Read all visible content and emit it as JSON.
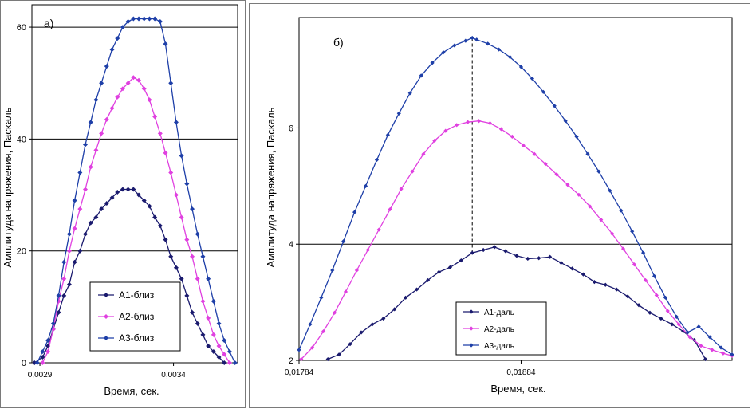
{
  "chart_data": [
    {
      "type": "line",
      "panel_label": "a)",
      "title": "",
      "xlabel": "Время, сек.",
      "ylabel": "Амплитуда напряжения, Паскаль",
      "xlim": [
        0.00287,
        0.00364
      ],
      "ylim": [
        0,
        64
      ],
      "xticks": [
        0.0029,
        0.0034
      ],
      "xtick_labels": [
        "0,0029",
        "0,0034"
      ],
      "yticks": [
        0,
        20,
        40,
        60
      ],
      "ytick_labels": [
        "0",
        "20",
        "40",
        "60"
      ],
      "grid": "horizontal",
      "legend_position": "lower-left",
      "series": [
        {
          "name": "А1-близ",
          "color": "#1a1a6e",
          "x": [
            0.00288,
            0.00291,
            0.00293,
            0.00295,
            0.00297,
            0.00299,
            0.00301,
            0.00303,
            0.00305,
            0.00307,
            0.00309,
            0.00311,
            0.00313,
            0.00315,
            0.00317,
            0.00319,
            0.00321,
            0.00323,
            0.00325,
            0.00327,
            0.00329,
            0.00331,
            0.00333,
            0.00335,
            0.00337,
            0.00339,
            0.00341,
            0.00343,
            0.00345,
            0.00347,
            0.00349,
            0.00351,
            0.00353,
            0.00355,
            0.00357,
            0.00359
          ],
          "y": [
            0,
            1,
            3,
            6,
            9,
            12,
            14,
            18,
            20,
            23,
            25,
            26,
            27.5,
            28.5,
            29.5,
            30.5,
            31,
            31,
            31,
            30,
            29,
            28,
            26,
            24.5,
            22,
            19,
            17,
            15,
            12,
            9,
            7,
            5,
            3,
            2,
            1,
            0
          ]
        },
        {
          "name": "А2-близ",
          "color": "#e040e0",
          "x": [
            0.00291,
            0.00293,
            0.00295,
            0.00297,
            0.00299,
            0.00301,
            0.00303,
            0.00305,
            0.00307,
            0.00309,
            0.00311,
            0.00313,
            0.00315,
            0.00317,
            0.00319,
            0.00321,
            0.00323,
            0.00325,
            0.00327,
            0.00329,
            0.00331,
            0.00333,
            0.00335,
            0.00337,
            0.00339,
            0.00341,
            0.00343,
            0.00345,
            0.00347,
            0.00349,
            0.00351,
            0.00353,
            0.00355,
            0.00357,
            0.00359,
            0.00361
          ],
          "y": [
            0,
            2,
            6,
            11,
            15,
            20,
            24,
            27.5,
            31,
            35,
            38,
            41,
            43.5,
            45.5,
            47.5,
            49,
            50,
            51,
            50.5,
            49,
            47,
            44,
            41,
            37.5,
            34,
            30,
            26,
            22,
            19,
            15,
            11,
            8,
            5,
            3,
            1.5,
            0
          ]
        },
        {
          "name": "А3-близ",
          "color": "#1e3fa8",
          "x": [
            0.00289,
            0.00291,
            0.00293,
            0.00295,
            0.00297,
            0.00299,
            0.00301,
            0.00303,
            0.00305,
            0.00307,
            0.00309,
            0.00311,
            0.00313,
            0.00315,
            0.00317,
            0.00319,
            0.00321,
            0.00323,
            0.00325,
            0.00327,
            0.00329,
            0.00331,
            0.00333,
            0.00335,
            0.00337,
            0.00339,
            0.00341,
            0.00343,
            0.00345,
            0.00347,
            0.00349,
            0.00351,
            0.00353,
            0.00355,
            0.00357,
            0.00359,
            0.00361,
            0.00363
          ],
          "y": [
            0,
            2,
            4,
            7,
            12,
            18,
            23,
            29,
            34,
            39,
            43,
            47,
            50,
            53,
            56,
            58,
            60,
            61,
            61.5,
            61.5,
            61.5,
            61.5,
            61.5,
            61,
            57,
            50,
            43,
            37,
            32,
            27.5,
            23,
            19,
            15,
            11,
            7,
            4,
            2,
            0
          ]
        }
      ]
    },
    {
      "type": "line",
      "panel_label": "б)",
      "title": "",
      "xlabel": "Время, сек.",
      "ylabel": "Амплитуда напряжения, Паскаль",
      "xlim": [
        0.01784,
        0.01979
      ],
      "ylim": [
        2,
        7.9
      ],
      "xticks": [
        0.01784,
        0.01884
      ],
      "xtick_labels": [
        "0,01784",
        "0,01884"
      ],
      "yticks": [
        2,
        4,
        6
      ],
      "ytick_labels": [
        "2",
        "4",
        "6"
      ],
      "grid": "horizontal",
      "legend_position": "lower-left",
      "reference_line_x": 0.01862,
      "series": [
        {
          "name": "А1-даль",
          "color": "#1a1a6e",
          "x": [
            0.01797,
            0.01802,
            0.01807,
            0.01812,
            0.01817,
            0.01822,
            0.01827,
            0.01832,
            0.01837,
            0.01842,
            0.01847,
            0.01852,
            0.01857,
            0.01862,
            0.01867,
            0.01872,
            0.01877,
            0.01882,
            0.01887,
            0.01892,
            0.01897,
            0.01902,
            0.01907,
            0.01912,
            0.01917,
            0.01922,
            0.01927,
            0.01932,
            0.01937,
            0.01942,
            0.01947,
            0.01952,
            0.01957,
            0.01962,
            0.01967
          ],
          "y": [
            2.02,
            2.1,
            2.28,
            2.48,
            2.62,
            2.72,
            2.88,
            3.08,
            3.22,
            3.38,
            3.52,
            3.6,
            3.72,
            3.85,
            3.9,
            3.95,
            3.88,
            3.8,
            3.75,
            3.76,
            3.78,
            3.68,
            3.58,
            3.48,
            3.35,
            3.3,
            3.22,
            3.1,
            2.95,
            2.82,
            2.72,
            2.62,
            2.5,
            2.35,
            2.02
          ]
        },
        {
          "name": "А2-даль",
          "color": "#e040e0",
          "x": [
            0.01785,
            0.0179,
            0.01795,
            0.018,
            0.01805,
            0.0181,
            0.01815,
            0.0182,
            0.01825,
            0.0183,
            0.01835,
            0.0184,
            0.01845,
            0.0185,
            0.01855,
            0.0186,
            0.01865,
            0.0187,
            0.01875,
            0.0188,
            0.01885,
            0.0189,
            0.01895,
            0.019,
            0.01905,
            0.0191,
            0.01915,
            0.0192,
            0.01925,
            0.0193,
            0.01935,
            0.0194,
            0.01945,
            0.0195,
            0.01955,
            0.0196,
            0.01965,
            0.0197,
            0.01975,
            0.01979
          ],
          "y": [
            2.02,
            2.22,
            2.5,
            2.82,
            3.18,
            3.55,
            3.9,
            4.25,
            4.6,
            4.95,
            5.25,
            5.55,
            5.78,
            5.95,
            6.05,
            6.1,
            6.12,
            6.08,
            5.98,
            5.85,
            5.7,
            5.55,
            5.38,
            5.2,
            5.02,
            4.85,
            4.65,
            4.42,
            4.18,
            3.92,
            3.65,
            3.38,
            3.12,
            2.85,
            2.62,
            2.4,
            2.25,
            2.18,
            2.12,
            2.08
          ]
        },
        {
          "name": "А3-даль",
          "color": "#1e3fa8",
          "x": [
            0.01784,
            0.01789,
            0.01794,
            0.01799,
            0.01804,
            0.01809,
            0.01814,
            0.01819,
            0.01824,
            0.01829,
            0.01834,
            0.01839,
            0.01844,
            0.01849,
            0.01854,
            0.01859,
            0.01862,
            0.01864,
            0.01869,
            0.01874,
            0.01879,
            0.01884,
            0.01889,
            0.01894,
            0.01899,
            0.01904,
            0.01909,
            0.01914,
            0.01919,
            0.01924,
            0.01929,
            0.01934,
            0.01939,
            0.01944,
            0.01949,
            0.01954,
            0.01959,
            0.01964,
            0.01969,
            0.01974,
            0.01979
          ],
          "y": [
            2.18,
            2.62,
            3.08,
            3.55,
            4.05,
            4.55,
            5.0,
            5.45,
            5.88,
            6.25,
            6.6,
            6.9,
            7.12,
            7.3,
            7.42,
            7.5,
            7.55,
            7.52,
            7.45,
            7.35,
            7.22,
            7.05,
            6.85,
            6.62,
            6.38,
            6.12,
            5.85,
            5.55,
            5.25,
            4.92,
            4.58,
            4.22,
            3.85,
            3.45,
            3.08,
            2.75,
            2.48,
            2.58,
            2.4,
            2.22,
            2.1
          ]
        }
      ]
    }
  ]
}
